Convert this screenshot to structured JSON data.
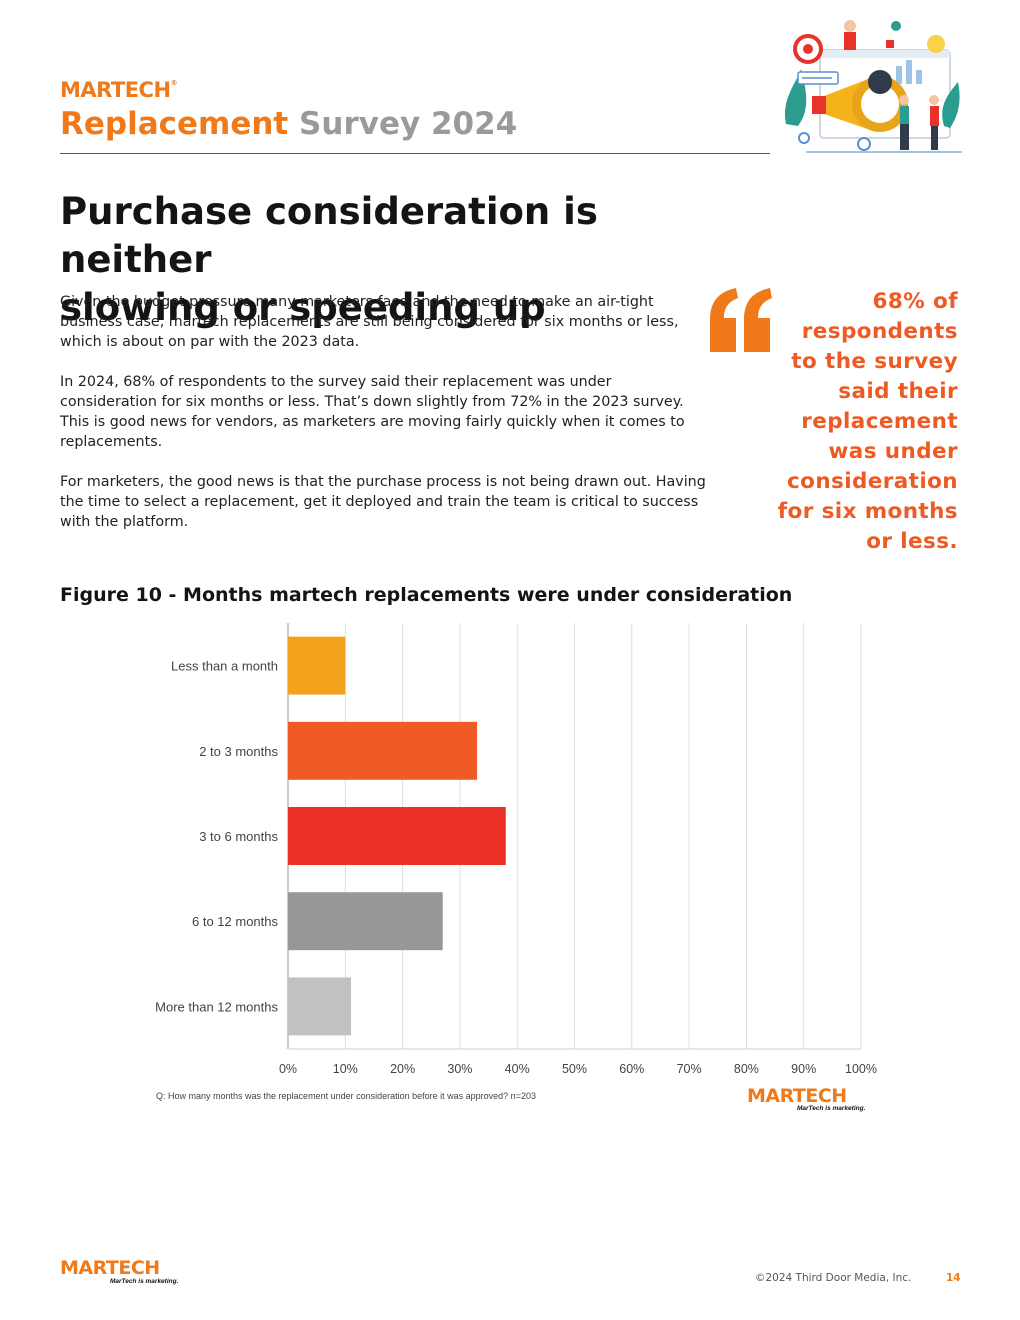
{
  "header": {
    "brand": "MARTECH",
    "title_part1": "Replacement",
    "title_part2": "Survey 2024"
  },
  "headline": {
    "line1": "Purchase consideration is neither",
    "line2": "slowing or speeding up"
  },
  "body": {
    "p1": "Given the budget pressure many marketers face and the need to make an air-tight business case, martech replacements are still being considered for six months or less, which is about on par with the 2023 data.",
    "p2": "In 2024, 68% of respondents to the survey said their replacement was under consideration for six months or less. That’s down slightly from 72% in the 2023 survey. This is good news for vendors, as marketers are moving fairly quickly when it comes to replacements.",
    "p3": "For marketers, the good news is that the purchase process is not being drawn out. Having the time to select a replacement, get it deployed and train the team is critical to success with the platform."
  },
  "pull_quote": {
    "lines": [
      "68% of",
      "respondents",
      "to the survey",
      "said their",
      "replacement",
      "was under",
      "consideration",
      "for six months",
      "or less."
    ]
  },
  "figure": {
    "title": "Figure 10 - Months martech replacements were under consideration",
    "question": "Q: How many months was the replacement under consideration before it was approved? n=203"
  },
  "chart_data": {
    "type": "bar",
    "orientation": "horizontal",
    "title": "Figure 10 - Months martech replacements were under consideration",
    "categories": [
      "Less than a month",
      "2 to 3 months",
      "3 to 6 months",
      "6 to 12 months",
      "More than 12 months"
    ],
    "values": [
      10,
      33,
      38,
      27,
      11
    ],
    "colors": [
      "#f4a21d",
      "#f05a25",
      "#ea2f25",
      "#97979a",
      "#c1c1c3"
    ],
    "xlim": [
      0,
      100
    ],
    "xticks": [
      "0%",
      "10%",
      "20%",
      "30%",
      "40%",
      "50%",
      "60%",
      "70%",
      "80%",
      "90%",
      "100%"
    ],
    "grid": true
  },
  "logos": {
    "mid_brand": "MARTECH",
    "mid_tagline": "MarTech is marketing.",
    "footer_brand": "MARTECH",
    "footer_tagline": "MarTech is marketing."
  },
  "footer": {
    "copyright": "©2024 Third Door Media, Inc.",
    "page": "14"
  },
  "colors": {
    "orange": "#f07a1a",
    "red": "#e8322a",
    "quote": "#ee5a24"
  }
}
